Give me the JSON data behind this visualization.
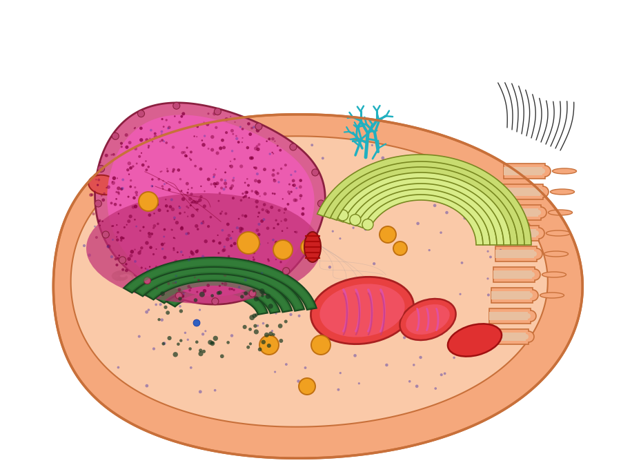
{
  "bg": "#ffffff",
  "cell_fill": "#F5A87C",
  "cell_edge": "#C8703A",
  "cyto_fill": "#FAC9A8",
  "cyto_edge": "#C8703A",
  "nucleus_outer_fill": "#D96090",
  "nucleus_inner_fill": "#EC5CB0",
  "nucleus_edge": "#8B2040",
  "nucleolus_fill": "#AA3060",
  "nucleolus_edge": "#7A1040",
  "pore_fill": "#C04878",
  "golgi_fill": "#D8EC88",
  "golgi_edge": "#788820",
  "green_org_fill": "#2A7030",
  "green_org_edge": "#1A4820",
  "green_org_inner": "#1A5020",
  "mit_fill": "#E84040",
  "mit_edge": "#A82020",
  "mit_inner_fill": "#F05060",
  "mit_cristae": "#E050A0",
  "lyso_fill": "#E03030",
  "lyso_edge": "#A01010",
  "vesicle_fill": "#F0A020",
  "vesicle_edge": "#C07010",
  "er_rough_fill": "#F5C8A0",
  "er_rough_inner": "#E8B898",
  "er_rough_edge": "#A06030",
  "er_network_color": "#20B0C0",
  "cilia_color": "#333333",
  "centrosome_fill": "#CC2020",
  "centrosome_edge": "#881010",
  "ribosome_color": "#553388",
  "left_lyso_fill": "#E05050",
  "left_lyso_edge": "#A02020",
  "figsize": [
    9.0,
    6.87
  ],
  "dpi": 100
}
